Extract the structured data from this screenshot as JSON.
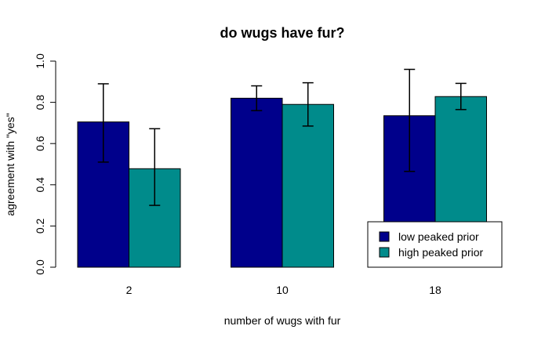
{
  "chart_data": {
    "type": "bar",
    "title": "do wugs have fur?",
    "xlabel": "number of wugs with fur",
    "ylabel": "agreement with \"yes\"",
    "ylim": [
      0,
      1
    ],
    "yticks": [
      "0.0",
      "0.2",
      "0.4",
      "0.6",
      "0.8",
      "1.0"
    ],
    "categories": [
      "2",
      "10",
      "18"
    ],
    "series": [
      {
        "name": "low peaked prior",
        "color": "#00008B",
        "values": [
          0.705,
          0.82,
          0.735
        ],
        "err_low": [
          0.51,
          0.76,
          0.465
        ],
        "err_high": [
          0.89,
          0.88,
          0.96
        ]
      },
      {
        "name": "high peaked prior",
        "color": "#008B8B",
        "values": [
          0.478,
          0.79,
          0.828
        ],
        "err_low": [
          0.3,
          0.685,
          0.765
        ],
        "err_high": [
          0.672,
          0.895,
          0.892
        ]
      }
    ],
    "legend": "bottom-right",
    "grid": false
  }
}
